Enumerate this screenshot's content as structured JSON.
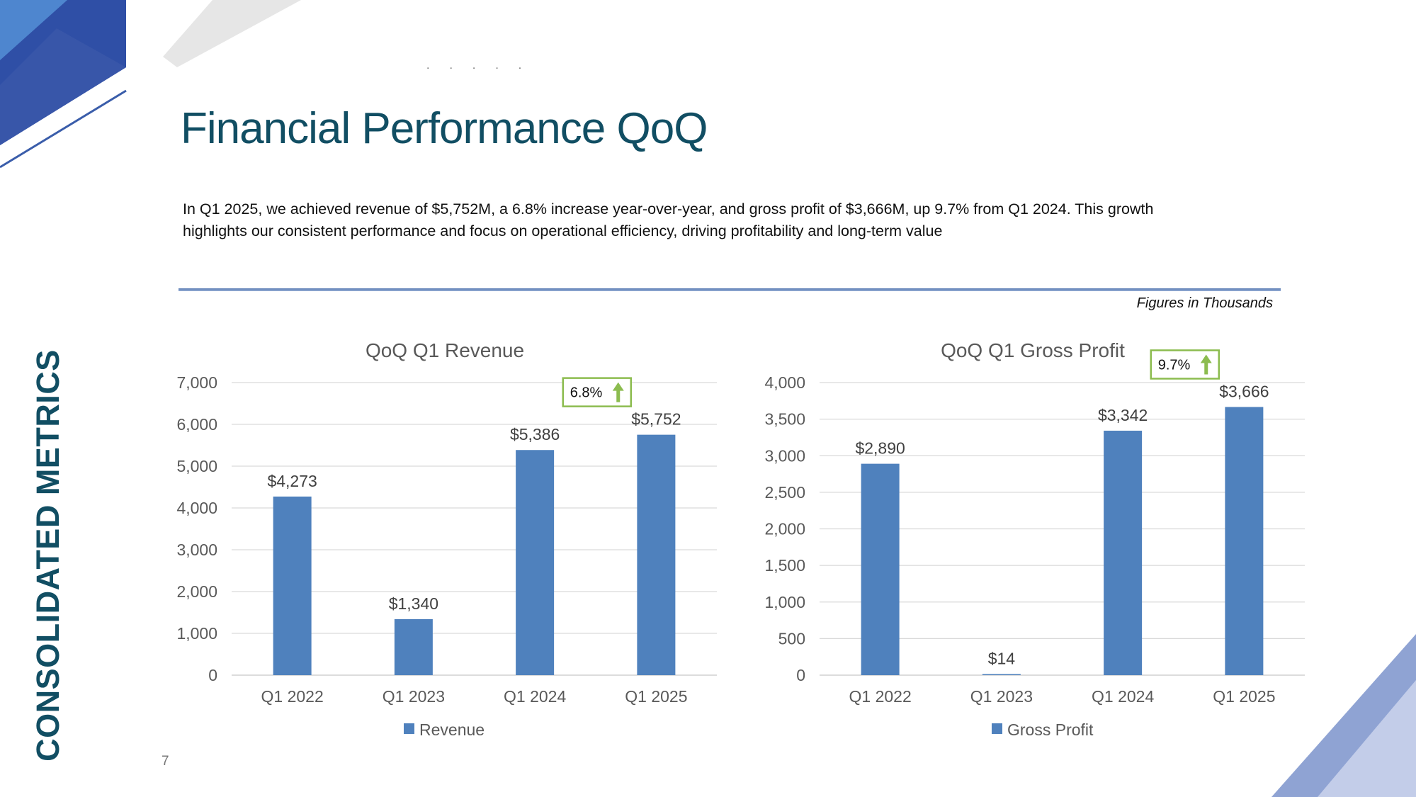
{
  "slide": {
    "title": "Financial Performance QoQ",
    "summary": "In Q1 2025, we achieved revenue of $5,752M, a 6.8% increase year-over-year, and gross profit of $3,666M, up 9.7% from Q1 2024. This growth highlights our consistent performance and focus on operational efficiency, driving profitability and long-term value",
    "figures_note": "Figures in Thousands",
    "side_label": "CONSOLIDATED METRICS",
    "page_number": "7",
    "dots": ".....",
    "colors": {
      "title": "#114e63",
      "bar": "#4f81bd",
      "callout_border": "#8cbc4f",
      "arrow": "#8cbc4f",
      "decor_blue": "#3a5daa"
    }
  },
  "chart_data": [
    {
      "type": "bar",
      "title": "QoQ Q1 Revenue",
      "categories": [
        "Q1 2022",
        "Q1 2023",
        "Q1 2024",
        "Q1 2025"
      ],
      "values": [
        4273,
        1340,
        5386,
        5752
      ],
      "data_labels": [
        "$4,273",
        "$1,340",
        "$5,386",
        "$5,752"
      ],
      "ylim": [
        0,
        7000
      ],
      "yticks": [
        0,
        1000,
        2000,
        3000,
        4000,
        5000,
        6000,
        7000
      ],
      "ytick_labels": [
        "0",
        "1,000",
        "2,000",
        "3,000",
        "4,000",
        "5,000",
        "6,000",
        "7,000"
      ],
      "legend": "Revenue",
      "legend_position": "bottom",
      "grid": true,
      "callout": {
        "text": "6.8%",
        "icon": "up-arrow-icon"
      }
    },
    {
      "type": "bar",
      "title": "QoQ Q1 Gross Profit",
      "categories": [
        "Q1 2022",
        "Q1 2023",
        "Q1 2024",
        "Q1 2025"
      ],
      "values": [
        2890,
        14,
        3342,
        3666
      ],
      "data_labels": [
        "$2,890",
        "$14",
        "$3,342",
        "$3,666"
      ],
      "ylim": [
        0,
        4000
      ],
      "yticks": [
        0,
        500,
        1000,
        1500,
        2000,
        2500,
        3000,
        3500,
        4000
      ],
      "ytick_labels": [
        "0",
        "500",
        "1,000",
        "1,500",
        "2,000",
        "2,500",
        "3,000",
        "3,500",
        "4,000"
      ],
      "legend": "Gross Profit",
      "legend_position": "bottom",
      "grid": true,
      "callout": {
        "text": "9.7%",
        "icon": "up-arrow-icon"
      }
    }
  ]
}
